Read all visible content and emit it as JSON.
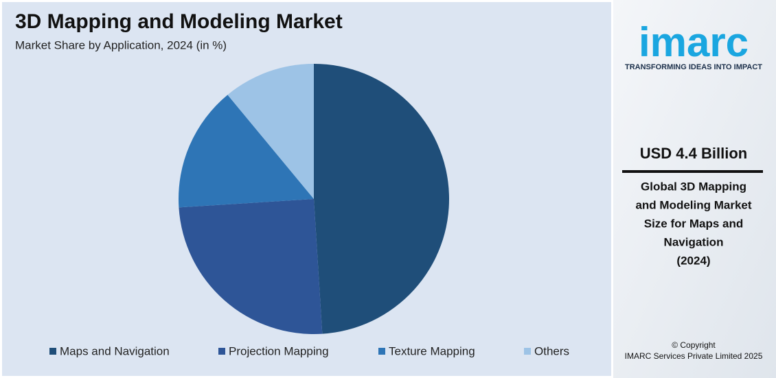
{
  "chart_data": {
    "type": "pie",
    "title": "3D Mapping and Modeling Market",
    "subtitle": "Market Share by Application, 2024 (in %)",
    "categories": [
      "Maps and Navigation",
      "Projection Mapping",
      "Texture Mapping",
      "Others"
    ],
    "values": [
      49,
      25,
      15,
      11
    ],
    "colors": [
      "#1f4e79",
      "#2e5597",
      "#2e75b6",
      "#9dc3e6"
    ],
    "legend": "bottom"
  },
  "sidebar": {
    "logo": "imarc",
    "tagline": "TRANSFORMING IDEAS INTO IMPACT",
    "headline": "USD 4.4 Billion",
    "description": [
      "Global 3D Mapping",
      "and Modeling Market",
      "Size for Maps and",
      "Navigation",
      "(2024)"
    ],
    "copyright": [
      "© Copyright",
      "IMARC Services Private Limited 2025"
    ]
  }
}
